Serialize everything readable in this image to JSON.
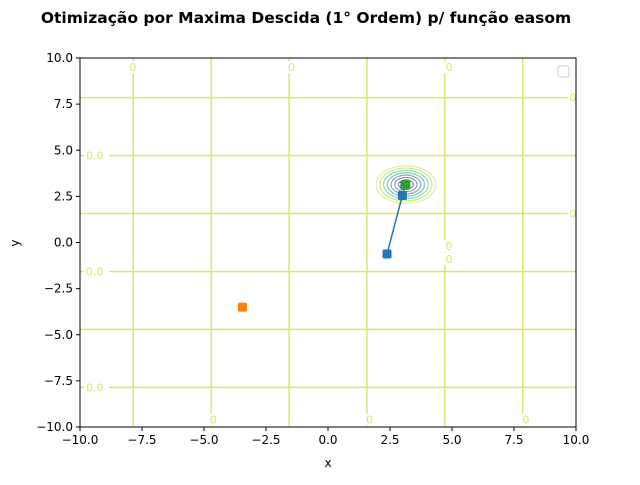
{
  "chart_data": {
    "type": "contour",
    "title": "Otimização por Maxima Descida (1° Ordem) p/ função easom",
    "xlabel": "x",
    "ylabel": "y",
    "xlim": [
      -10,
      10
    ],
    "ylim": [
      -10,
      10
    ],
    "xticks": [
      -10,
      -7.5,
      -5,
      -2.5,
      0,
      2.5,
      5,
      7.5,
      10
    ],
    "yticks": [
      -10,
      -7.5,
      -5,
      -2.5,
      0,
      2.5,
      5,
      7.5,
      10
    ],
    "xtick_labels": [
      "−10.0",
      "−7.5",
      "−5.0",
      "−2.5",
      "0.0",
      "2.5",
      "5.0",
      "7.5",
      "10.0"
    ],
    "ytick_labels": [
      "−10.0",
      "−7.5",
      "−5.0",
      "−2.5",
      "0.0",
      "2.5",
      "5.0",
      "7.5",
      "10.0"
    ],
    "grid": false,
    "legend": {
      "placement": "top-right",
      "entries": []
    },
    "function": "easom",
    "contour_minimum": [
      3.14159,
      3.14159
    ],
    "contour_level_line_color": "#d4ea6c",
    "contour_vertical_lines_x": [
      -7.85,
      -4.71,
      -1.57,
      1.57,
      4.71,
      7.85
    ],
    "contour_horizontal_lines_y": [
      7.85,
      4.71,
      1.57,
      -1.57,
      -4.71,
      -7.85
    ],
    "contour_labels": [
      {
        "text": "0",
        "x": -7.85,
        "y": 9.5
      },
      {
        "text": "0",
        "x": -1.45,
        "y": 9.5
      },
      {
        "text": "0",
        "x": 4.9,
        "y": 9.5
      },
      {
        "text": "0.0",
        "x": 9.9,
        "y": 7.85
      },
      {
        "text": "0.0",
        "x": -9.6,
        "y": 4.71
      },
      {
        "text": "0.0",
        "x": 9.9,
        "y": 1.57
      },
      {
        "text": "0.0",
        "x": -9.6,
        "y": -1.57
      },
      {
        "text": "0.0",
        "x": -9.6,
        "y": -7.85
      },
      {
        "text": "0",
        "x": 4.9,
        "y": -0.2
      },
      {
        "text": "0",
        "x": 4.9,
        "y": -0.9
      },
      {
        "text": "0",
        "x": -4.6,
        "y": -9.6
      },
      {
        "text": "0",
        "x": 1.7,
        "y": -9.6
      },
      {
        "text": "0",
        "x": 8.0,
        "y": -9.6
      }
    ],
    "contour_ring_radii": [
      0.15,
      0.3,
      0.45,
      0.6,
      0.75,
      0.9,
      1.05,
      1.2
    ],
    "contour_ring_colors": [
      "#440154",
      "#46327e",
      "#365c8d",
      "#277f8e",
      "#1fa187",
      "#4ac16d",
      "#a0da39",
      "#c9e85a"
    ],
    "series": [
      {
        "marker": "square",
        "color": "#1f77b4",
        "points": [
          [
            2.38,
            -0.62
          ],
          [
            3.0,
            2.55
          ],
          [
            3.1,
            3.1
          ]
        ]
      },
      {
        "marker": "square",
        "color": "#ff7f0e",
        "points": [
          [
            -3.45,
            -3.5
          ]
        ]
      },
      {
        "marker": "square",
        "color": "#2ca02c",
        "points": [
          [
            3.14,
            3.14
          ]
        ]
      }
    ]
  }
}
